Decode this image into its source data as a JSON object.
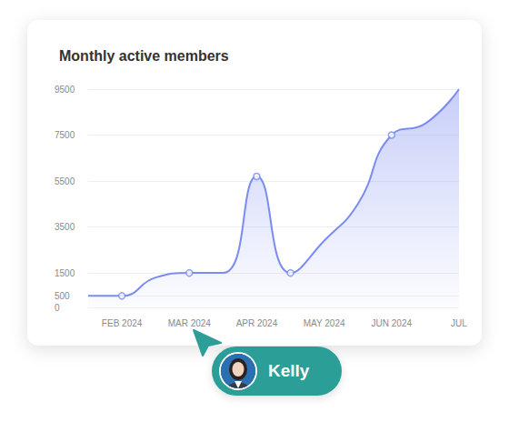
{
  "chart_data": {
    "type": "line",
    "title": "Monthly active members",
    "categories": [
      null,
      "FEB 2024",
      null,
      "MAR 2024",
      null,
      "APR 2024",
      null,
      "MAY 2024",
      null,
      "JUN 2024",
      null,
      "JUL"
    ],
    "series": [
      {
        "type": "area",
        "color": "#7b8cf0",
        "marker": "none",
        "values": [
          500,
          500,
          1300,
          1500,
          1500,
          5700,
          1500,
          2900,
          4500,
          7500,
          8000,
          9500
        ]
      },
      {
        "type": "scatter",
        "color": "#7b8cf0",
        "marker": "circle",
        "values": [
          null,
          500,
          null,
          1500,
          null,
          5700,
          1500,
          null,
          null,
          7500,
          null,
          null
        ]
      }
    ],
    "ylim": [
      0,
      9500
    ],
    "yticks": [
      0,
      500,
      1500,
      3500,
      5500,
      7500,
      9500
    ],
    "grid": true,
    "annotation": "Kelly"
  }
}
